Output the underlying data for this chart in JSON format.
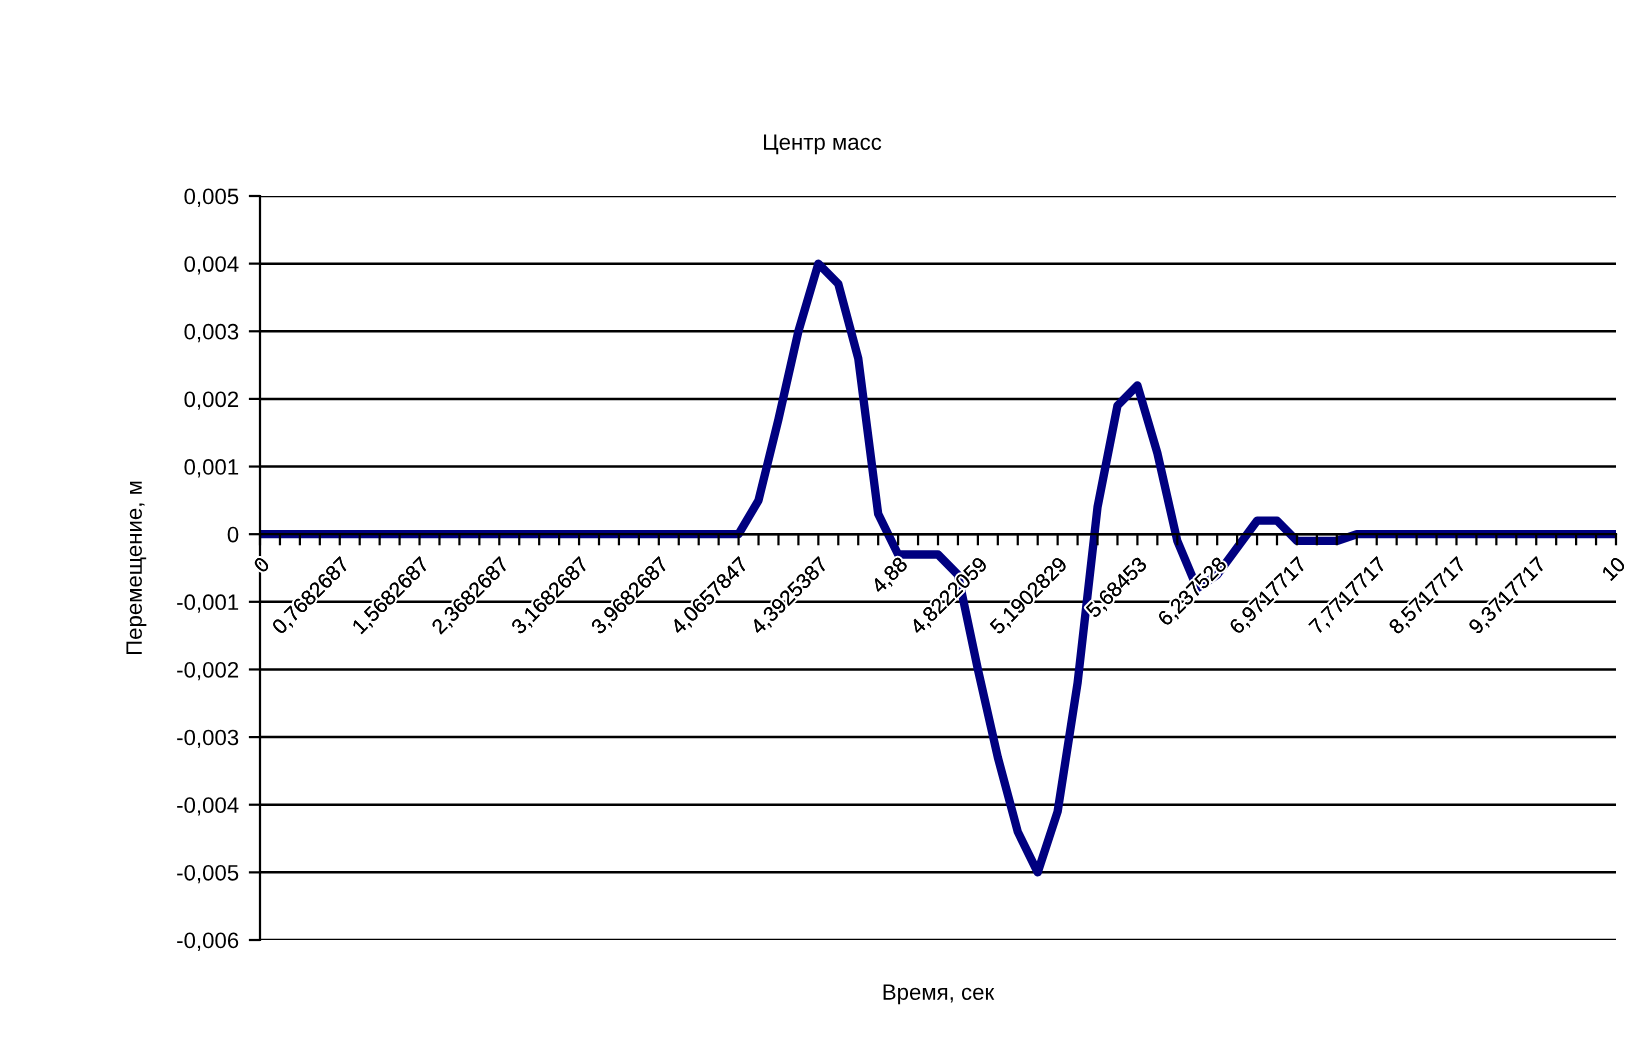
{
  "chart_data": {
    "type": "line",
    "title": "Центр масс",
    "xlabel": "Время, сек",
    "ylabel": "Перемещение, м",
    "categories": [
      "0",
      null,
      null,
      null,
      "0,7682687",
      null,
      null,
      null,
      "1,5682687",
      null,
      null,
      null,
      "2,3682687",
      null,
      null,
      null,
      "3,1682687",
      null,
      null,
      null,
      "3,9682687",
      null,
      null,
      null,
      "4,0657847",
      null,
      null,
      null,
      "4,3925387",
      null,
      null,
      null,
      "4,88",
      null,
      null,
      null,
      "4,8222059",
      null,
      null,
      null,
      "5,1902829",
      null,
      null,
      null,
      "5,68453",
      null,
      null,
      null,
      "6,237528",
      null,
      null,
      null,
      "6,9717717",
      null,
      null,
      null,
      "7,7717717",
      null,
      null,
      null,
      "8,5717717",
      null,
      null,
      null,
      "9,3717717",
      null,
      null,
      null,
      "10"
    ],
    "series": [
      {
        "color": "#000080",
        "values": [
          0,
          0,
          0,
          0,
          0,
          0,
          0,
          0,
          0,
          0,
          0,
          0,
          0,
          0,
          0,
          0,
          0,
          0,
          0,
          0,
          0,
          0,
          0,
          0,
          0,
          0.0005,
          0.0017,
          0.003,
          0.004,
          0.0037,
          0.0026,
          0.0003,
          -0.0003,
          -0.0003,
          -0.0003,
          -0.0006,
          -0.002,
          -0.0033,
          -0.0044,
          -0.005,
          -0.0041,
          -0.0022,
          0.0004,
          0.0019,
          0.0022,
          0.0012,
          -0.0001,
          -0.0008,
          -0.0006,
          -0.0002,
          0.0002,
          0.0002,
          -0.0001,
          -0.0001,
          -0.0001,
          0,
          0,
          0,
          0,
          0,
          0,
          0,
          0,
          0,
          0,
          0,
          0,
          0,
          0
        ]
      }
    ],
    "ylim": [
      -0.006,
      0.005
    ],
    "yticks": [
      {
        "value": -0.006,
        "label": "-0,006"
      },
      {
        "value": -0.005,
        "label": "-0,005"
      },
      {
        "value": -0.004,
        "label": "-0,004"
      },
      {
        "value": -0.003,
        "label": "-0,003"
      },
      {
        "value": -0.002,
        "label": "-0,002"
      },
      {
        "value": -0.001,
        "label": "-0,001"
      },
      {
        "value": 0,
        "label": "0"
      },
      {
        "value": 0.001,
        "label": "0,001"
      },
      {
        "value": 0.002,
        "label": "0,002"
      },
      {
        "value": 0.003,
        "label": "0,003"
      },
      {
        "value": 0.004,
        "label": "0,004"
      },
      {
        "value": 0.005,
        "label": "0,005"
      }
    ],
    "grid": "y",
    "legend": false,
    "marker": "none",
    "line_style": "solid"
  }
}
